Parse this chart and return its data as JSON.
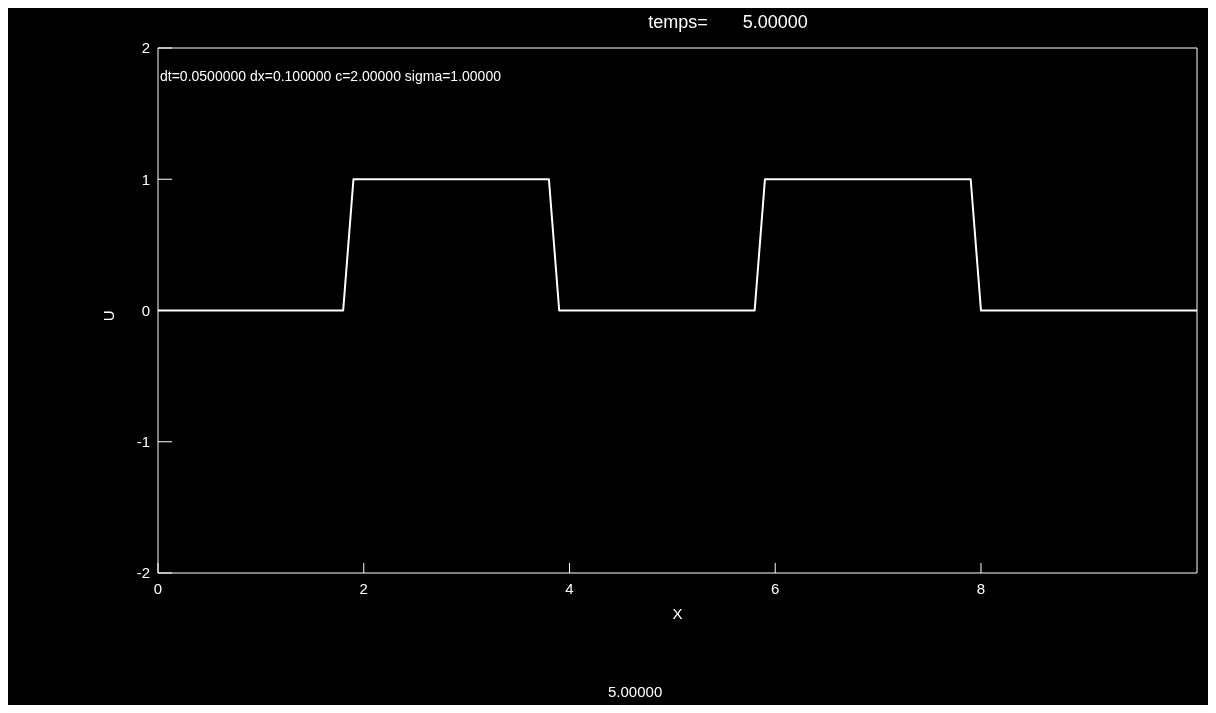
{
  "chart_data": {
    "type": "line",
    "title": "temps=       5.00000",
    "xlabel": "X",
    "ylabel": "U",
    "annotations": [
      "dt=0.0500000 dx=0.100000 c=2.00000 sigma=1.00000",
      "5.00000"
    ],
    "x": [
      0,
      1.8,
      1.9,
      3.8,
      3.9,
      5.8,
      5.9,
      7.9,
      8.0,
      10.1
    ],
    "series": [
      {
        "color": "#ffffff",
        "values": [
          0,
          0,
          1,
          1,
          0,
          0,
          1,
          1,
          0,
          0
        ]
      }
    ],
    "xlim": [
      0,
      10.1
    ],
    "xticks": [
      0,
      2,
      4,
      6,
      8
    ],
    "ylim": [
      -2,
      2
    ],
    "yticks": [
      -2,
      -1,
      0,
      1,
      2
    ],
    "grid": false,
    "legend": false,
    "marker": "none",
    "line_style": "solid"
  }
}
